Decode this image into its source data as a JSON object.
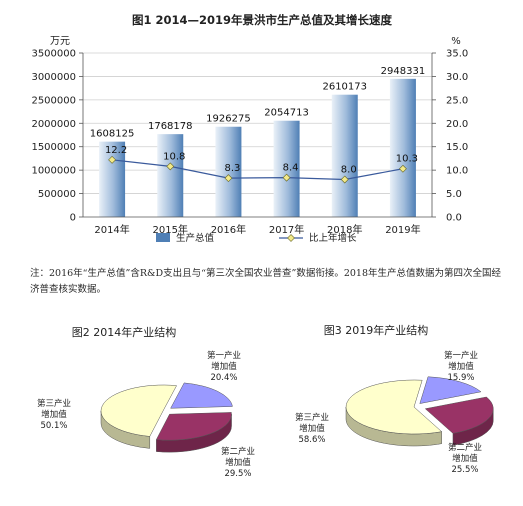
{
  "chart_data": [
    {
      "type": "bar",
      "title": "图1 2014—2019年景洪市生产总值及其增长速度",
      "ylabel_left": "万元",
      "ylabel_right": "%",
      "categories": [
        "2014年",
        "2015年",
        "2016年",
        "2017年",
        "2018年",
        "2019年"
      ],
      "series": [
        {
          "name": "生产总值",
          "type": "bar",
          "axis": "left",
          "values": [
            1608125,
            1768178,
            1926275,
            2054713,
            2610173,
            2948331
          ],
          "labels": [
            "1608125",
            "1768178",
            "1926275",
            "2054713",
            "2610173",
            "2948331"
          ]
        },
        {
          "name": "比上年增长",
          "type": "line",
          "axis": "right",
          "values": [
            12.2,
            10.8,
            8.3,
            8.4,
            8.0,
            10.3
          ],
          "labels": [
            "12.2",
            "10.8",
            "8.3",
            "8.4",
            "8.0",
            "10.3"
          ]
        }
      ],
      "ylim_left": [
        0,
        3500000
      ],
      "yticks_left": [
        "0",
        "500000",
        "1000000",
        "1500000",
        "2000000",
        "2500000",
        "3000000",
        "3500000"
      ],
      "ylim_right": [
        0,
        35
      ],
      "yticks_right": [
        "0.0",
        "5.0",
        "10.0",
        "15.0",
        "20.0",
        "25.0",
        "30.0",
        "35.0"
      ],
      "grid": true,
      "legend_position": "bottom",
      "colors": {
        "bar_light": "#dbe7f3",
        "bar_dark": "#4f7fb5",
        "line": "#3a5a9c",
        "marker": "#f3ea8a"
      }
    },
    {
      "type": "pie",
      "title": "图2 2014年产业结构",
      "slices": [
        {
          "name": "第一产业增加值",
          "value": 20.4,
          "label_lines": [
            "第一产业",
            "增加值",
            "20.4%"
          ],
          "color": "#9999ff"
        },
        {
          "name": "第二产业增加值",
          "value": 29.5,
          "label_lines": [
            "第二产业",
            "增加值",
            "29.5%"
          ],
          "color": "#993366"
        },
        {
          "name": "第三产业增加值",
          "value": 50.1,
          "label_lines": [
            "第三产业",
            "增加值",
            "50.1%"
          ],
          "color": "#ffffcc"
        }
      ]
    },
    {
      "type": "pie",
      "title": "图3 2019年产业结构",
      "slices": [
        {
          "name": "第一产业增加值",
          "value": 15.9,
          "label_lines": [
            "第一产业",
            "增加值",
            "15.9%"
          ],
          "color": "#9999ff"
        },
        {
          "name": "第二产业增加值",
          "value": 25.5,
          "label_lines": [
            "第二产业",
            "增加值",
            "25.5%"
          ],
          "color": "#993366"
        },
        {
          "name": "第三产业增加值",
          "value": 58.6,
          "label_lines": [
            "第三产业",
            "增加值",
            "58.6%"
          ],
          "color": "#ffffcc"
        }
      ]
    }
  ],
  "note": "注：2016年“生产总值”含R&D支出且与“第三次全国农业普查”数据衔接。2018年生产总值数据为第四次全国经济普查核实数据。"
}
